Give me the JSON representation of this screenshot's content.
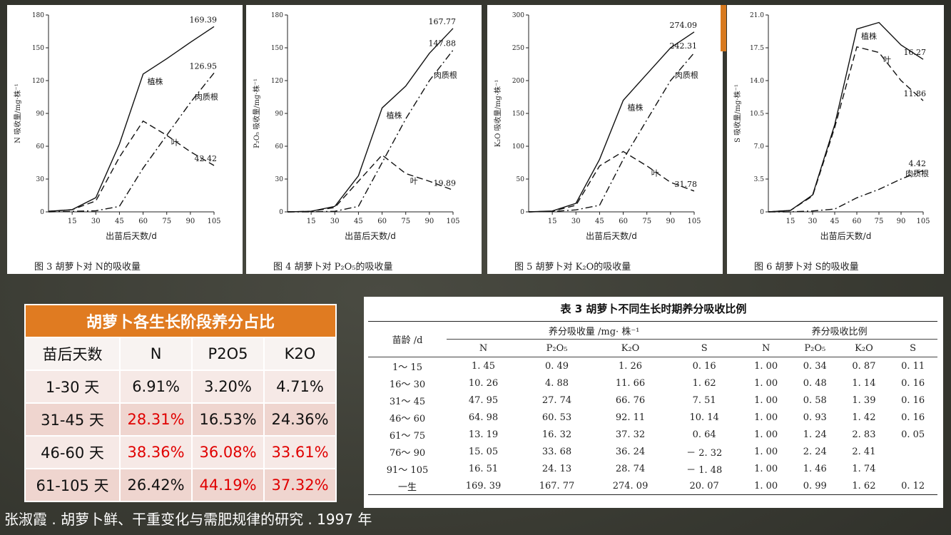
{
  "figures": [
    {
      "caption": "图 3 胡萝卜对 N的吸收量",
      "ylabel": "N 吸收量/mg·株⁻¹",
      "xlabel": "出苗后天数/d",
      "yticks": [
        "0",
        "30",
        "60",
        "90",
        "120",
        "150",
        "180"
      ],
      "ymax": 180,
      "xticks": [
        "15",
        "30",
        "45",
        "60",
        "75",
        "90",
        "105"
      ],
      "series": [
        {
          "name": "植株",
          "style": "solid",
          "values": [
            0.5,
            2,
            13,
            62,
            126,
            140,
            155,
            169.39
          ],
          "end_label": "169.39"
        },
        {
          "name": "肉质根",
          "style": "dashdot",
          "values": [
            0,
            0.5,
            1,
            5,
            40,
            70,
            100,
            126.95
          ],
          "end_label": "126.95"
        },
        {
          "name": "叶",
          "style": "dashed",
          "values": [
            0.5,
            2,
            10,
            50,
            83,
            70,
            55,
            42.42
          ],
          "end_label": "42.42"
        }
      ]
    },
    {
      "caption": "图 4 胡萝卜对 P₂O₅的吸收量",
      "ylabel": "P₂O₅ 吸收量/mg·株⁻¹",
      "xlabel": "出苗后天数/d",
      "yticks": [
        "0",
        "30",
        "60",
        "90",
        "120",
        "150",
        "180"
      ],
      "ymax": 180,
      "xticks": [
        "15",
        "30",
        "45",
        "60",
        "75",
        "90",
        "105"
      ],
      "series": [
        {
          "name": "植株",
          "style": "solid",
          "values": [
            0,
            0.5,
            5,
            33,
            95,
            115,
            145,
            167.77
          ],
          "end_label": "167.77"
        },
        {
          "name": "肉质根",
          "style": "dashdot",
          "values": [
            0,
            0,
            0.5,
            5,
            45,
            85,
            120,
            147.88
          ],
          "end_label": "147.88"
        },
        {
          "name": "叶",
          "style": "dashed",
          "values": [
            0,
            0.5,
            4,
            28,
            52,
            35,
            28,
            19.89
          ],
          "end_label": "19.89"
        }
      ]
    },
    {
      "caption": "图 5 胡萝卜对 K₂O的吸收量",
      "ylabel": "K₂O 吸收量/mg·株⁻¹",
      "xlabel": "出苗后天数/d",
      "yticks": [
        "0",
        "50",
        "100",
        "150",
        "200",
        "250",
        "300"
      ],
      "ymax": 300,
      "xticks": [
        "15",
        "30",
        "45",
        "60",
        "75",
        "90",
        "105"
      ],
      "series": [
        {
          "name": "植株",
          "style": "solid",
          "values": [
            0,
            1.3,
            13,
            80,
            170,
            210,
            250,
            274.09
          ],
          "end_label": "274.09"
        },
        {
          "name": "肉质根",
          "style": "dashdot",
          "values": [
            0,
            0.5,
            3,
            10,
            80,
            140,
            200,
            242.31
          ],
          "end_label": "242.31"
        },
        {
          "name": "叶",
          "style": "dashed",
          "values": [
            0,
            1,
            10,
            70,
            92,
            70,
            45,
            31.78
          ],
          "end_label": "31.78"
        }
      ]
    },
    {
      "caption": "图 6 胡萝卜对 S的吸收量",
      "ylabel": "S 吸收量/mg·株⁻¹",
      "xlabel": "出苗后天数/d",
      "yticks": [
        "0",
        "3.5",
        "7.0",
        "10.5",
        "14.0",
        "17.5",
        "21.0"
      ],
      "ymax": 21,
      "xticks": [
        "15",
        "30",
        "45",
        "60",
        "75",
        "90",
        "105"
      ],
      "series": [
        {
          "name": "植株",
          "style": "solid",
          "values": [
            0,
            0.16,
            1.8,
            9.3,
            19.5,
            20.2,
            17.8,
            16.27
          ],
          "end_label": "16.27"
        },
        {
          "name": "叶",
          "style": "dashed",
          "values": [
            0,
            0.15,
            1.7,
            9,
            17.6,
            17,
            14,
            11.86
          ],
          "end_label": "11.86"
        },
        {
          "name": "肉质根",
          "style": "dashdot",
          "values": [
            0,
            0,
            0.1,
            0.3,
            1.5,
            2.4,
            3.5,
            4.42
          ],
          "end_label": "4.42"
        }
      ]
    }
  ],
  "left_table": {
    "title": "胡萝卜各生长阶段养分占比",
    "headers": [
      "苗后天数",
      "N",
      "P2O5",
      "K2O"
    ],
    "rows": [
      [
        "1-30 天",
        "6.91%",
        "3.20%",
        "4.71%"
      ],
      [
        "31-45 天",
        "28.31%",
        "16.53%",
        "24.36%"
      ],
      [
        "46-60 天",
        "38.36%",
        "36.08%",
        "33.61%"
      ],
      [
        "61-105 天",
        "26.42%",
        "44.19%",
        "37.32%"
      ]
    ],
    "highlight_color": "#e00000",
    "header_color": "#e07b21"
  },
  "right_table": {
    "title": "表 3 胡萝卜不同生长时期养分吸收比例",
    "col_age": "苗龄 /d",
    "group1": "养分吸收量 /mg· 株⁻¹",
    "group2": "养分吸收比例",
    "subheaders": [
      "N",
      "P₂O₅",
      "K₂O",
      "S",
      "N",
      "P₂O₅",
      "K₂O",
      "S"
    ],
    "rows": [
      [
        "1～ 15",
        "1. 45",
        "0. 49",
        "1. 26",
        "0. 16",
        "1. 00",
        "0. 34",
        "0. 87",
        "0. 11"
      ],
      [
        "16～ 30",
        "10. 26",
        "4. 88",
        "11. 66",
        "1. 62",
        "1. 00",
        "0. 48",
        "1. 14",
        "0. 16"
      ],
      [
        "31～ 45",
        "47. 95",
        "27. 74",
        "66. 76",
        "7. 51",
        "1. 00",
        "0. 58",
        "1. 39",
        "0. 16"
      ],
      [
        "46～ 60",
        "64. 98",
        "60. 53",
        "92. 11",
        "10. 14",
        "1. 00",
        "0. 93",
        "1. 42",
        "0. 16"
      ],
      [
        "61～ 75",
        "13. 19",
        "16. 32",
        "37. 32",
        "0. 64",
        "1. 00",
        "1. 24",
        "2. 83",
        "0. 05"
      ],
      [
        "76～ 90",
        "15. 05",
        "33. 68",
        "36. 24",
        "－ 2. 32",
        "1. 00",
        "2. 24",
        "2. 41",
        ""
      ],
      [
        "91～ 105",
        "16. 51",
        "24. 13",
        "28. 74",
        "－ 1. 48",
        "1. 00",
        "1. 46",
        "1. 74",
        ""
      ],
      [
        "一生",
        "169. 39",
        "167. 77",
        "274. 09",
        "20. 07",
        "1. 00",
        "0. 99",
        "1. 62",
        "0. 12"
      ]
    ]
  },
  "source": "张淑霞 . 胡萝卜鲜、干重变化与需肥规律的研究 . 1997 年"
}
